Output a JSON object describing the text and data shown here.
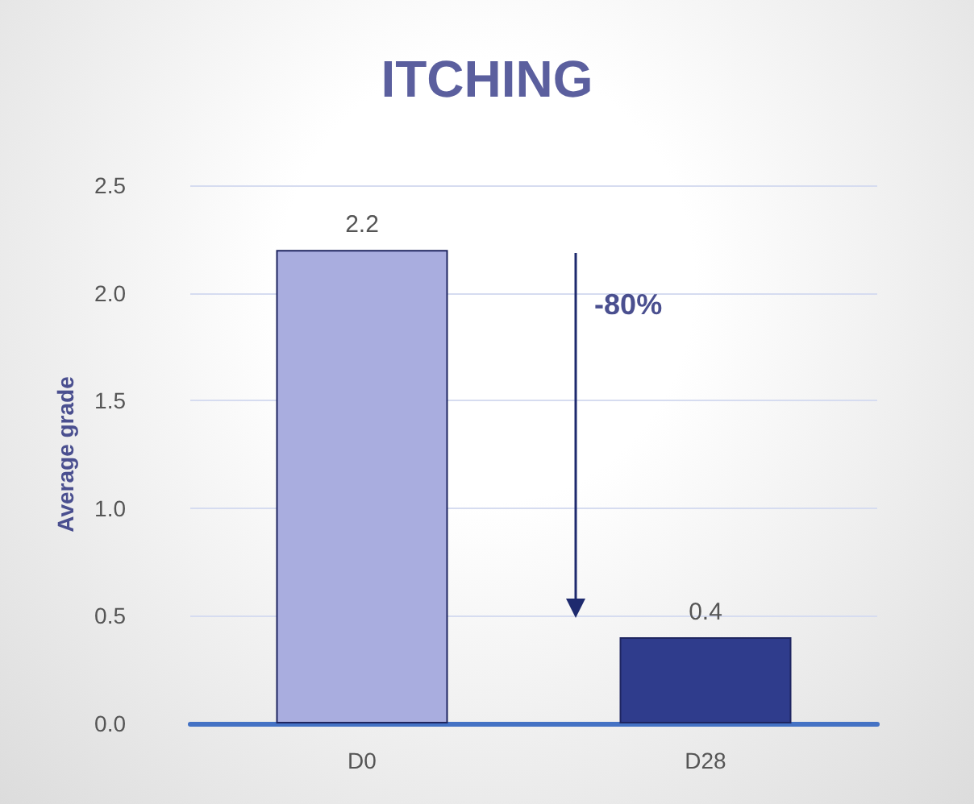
{
  "chart_data": {
    "type": "bar",
    "title": "ITCHING",
    "ylabel": "Average grade",
    "categories": [
      "D0",
      "D28"
    ],
    "values": [
      2.2,
      0.4
    ],
    "colors": [
      "#a9addf",
      "#2f3c8c"
    ],
    "ylim": [
      0,
      2.5
    ],
    "yticks": [
      {
        "value": 0,
        "label": "0.0"
      },
      0.5,
      {
        "value": 1,
        "label": "1.0"
      },
      1.5,
      {
        "value": 2,
        "label": "2.0"
      },
      2.5
    ],
    "grid": "y",
    "data_labels": true,
    "annotations": [
      "-80%"
    ]
  }
}
